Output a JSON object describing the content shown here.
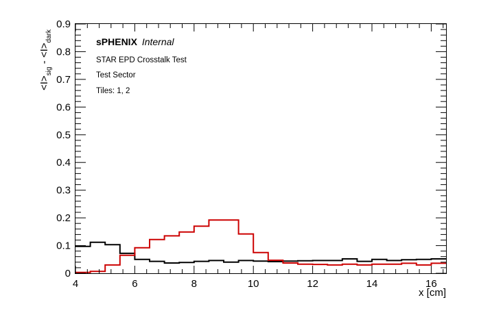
{
  "chart_data": {
    "type": "line",
    "step": true,
    "xlabel": "x [cm]",
    "ylabel_parts": [
      "<I>",
      "sig",
      " - <I>",
      "dark"
    ],
    "xlim": [
      4,
      16.5
    ],
    "ylim": [
      0,
      0.9
    ],
    "xticks": [
      4,
      6,
      8,
      10,
      12,
      14,
      16
    ],
    "yticks": [
      0,
      0.1,
      0.2,
      0.3,
      0.4,
      0.5,
      0.6,
      0.7,
      0.8,
      0.9
    ],
    "ytick_labels": [
      "0",
      "0.1",
      "0.2",
      "0.3",
      "0.4",
      "0.5",
      "0.6",
      "0.7",
      "0.8",
      "0.9"
    ],
    "grid": false,
    "annotations": {
      "brand_bold": "sPHENIX",
      "brand_italic": "Internal",
      "line1": "STAR EPD Crosstalk Test",
      "line2": "Test Sector",
      "line3": "Tiles: 1, 2"
    },
    "bin_edges": [
      4,
      4.5,
      5,
      5.5,
      6,
      6.5,
      7,
      7.5,
      8,
      8.5,
      9,
      9.5,
      10,
      10.5,
      11,
      11.5,
      12,
      12.5,
      13,
      13.5,
      14,
      14.5,
      15,
      15.5,
      16,
      16.5
    ],
    "series": [
      {
        "color": "#000000",
        "values": [
          0.097,
          0.112,
          0.103,
          0.072,
          0.05,
          0.043,
          0.037,
          0.039,
          0.043,
          0.046,
          0.04,
          0.046,
          0.044,
          0.042,
          0.044,
          0.045,
          0.046,
          0.046,
          0.052,
          0.043,
          0.05,
          0.046,
          0.049,
          0.05,
          0.052
        ]
      },
      {
        "color": "#cc0000",
        "values": [
          0.003,
          0.007,
          0.03,
          0.065,
          0.092,
          0.122,
          0.135,
          0.149,
          0.17,
          0.192,
          0.192,
          0.142,
          0.075,
          0.047,
          0.037,
          0.033,
          0.032,
          0.03,
          0.033,
          0.03,
          0.033,
          0.033,
          0.036,
          0.03,
          0.036
        ]
      }
    ]
  }
}
